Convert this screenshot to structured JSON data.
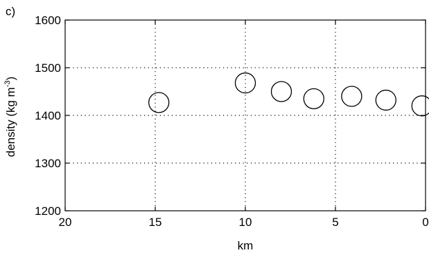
{
  "panel_label": "c)",
  "chart_data": {
    "type": "scatter",
    "title": "",
    "xlabel": "km",
    "ylabel_main": "density (kg m",
    "ylabel_sup": "-3",
    "ylabel_tail": ")",
    "xlim": [
      20,
      0
    ],
    "ylim": [
      1200,
      1600
    ],
    "x_reversed": true,
    "x_ticks": [
      20,
      15,
      10,
      5,
      0
    ],
    "y_ticks": [
      1200,
      1300,
      1400,
      1500,
      1600
    ],
    "x_tick_labels": [
      "20",
      "15",
      "10",
      "5",
      "0"
    ],
    "y_tick_labels": [
      "1200",
      "1300",
      "1400",
      "1500",
      "1600"
    ],
    "grid": true,
    "marker": "open-circle",
    "points": [
      {
        "x": 14.8,
        "y": 1427
      },
      {
        "x": 10.0,
        "y": 1468
      },
      {
        "x": 8.0,
        "y": 1450
      },
      {
        "x": 6.2,
        "y": 1435
      },
      {
        "x": 4.1,
        "y": 1440
      },
      {
        "x": 2.2,
        "y": 1432
      },
      {
        "x": 0.2,
        "y": 1420
      }
    ]
  }
}
